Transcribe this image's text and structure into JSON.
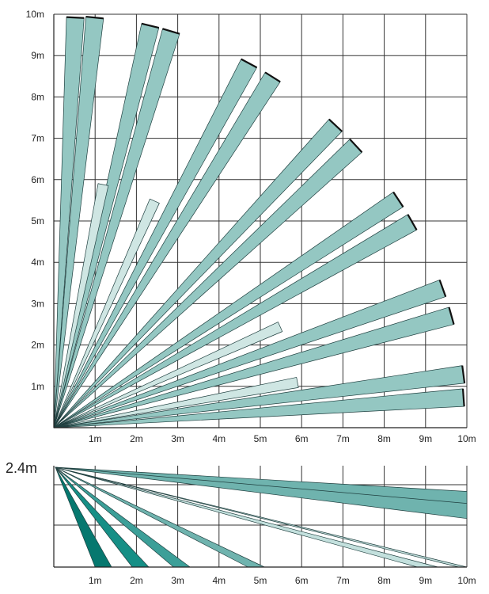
{
  "top_view": {
    "y_tick_labels": [
      "1m",
      "2m",
      "3m",
      "4m",
      "5m",
      "6m",
      "7m",
      "8m",
      "9m",
      "10m"
    ],
    "x_tick_labels": [
      "1m",
      "2m",
      "3m",
      "4m",
      "5m",
      "6m",
      "7m",
      "8m",
      "9m",
      "10m"
    ],
    "x_range_m": [
      0,
      10
    ],
    "y_range_m": [
      0,
      10
    ],
    "grid": true,
    "colors": {
      "long_beam": "#94c7c2",
      "short_beam": "#cfe6e3"
    },
    "long_beams": [
      {
        "angle_deg": 87.0,
        "range_m": 10.0
      },
      {
        "angle_deg": 84.3,
        "range_m": 10.0
      },
      {
        "angle_deg": 76.5,
        "range_m": 10.0
      },
      {
        "angle_deg": 73.5,
        "range_m": 10.0
      },
      {
        "angle_deg": 61.8,
        "range_m": 10.0
      },
      {
        "angle_deg": 58.0,
        "range_m": 10.0
      },
      {
        "angle_deg": 47.0,
        "range_m": 10.0
      },
      {
        "angle_deg": 43.0,
        "range_m": 10.0
      },
      {
        "angle_deg": 33.5,
        "range_m": 10.0
      },
      {
        "angle_deg": 29.8,
        "range_m": 10.0
      },
      {
        "angle_deg": 19.7,
        "range_m": 10.0
      },
      {
        "angle_deg": 15.7,
        "range_m": 10.0
      },
      {
        "angle_deg": 7.4,
        "range_m": 10.0
      },
      {
        "angle_deg": 4.2,
        "range_m": 10.0
      }
    ],
    "short_beams": [
      {
        "angle_deg": 78.5,
        "range_m": 6.0
      },
      {
        "angle_deg": 66.0,
        "range_m": 6.0
      },
      {
        "angle_deg": 24.0,
        "range_m": 6.0
      },
      {
        "angle_deg": 10.5,
        "range_m": 6.0
      }
    ]
  },
  "side_view": {
    "mount_height_label": "2.4m",
    "x_tick_labels": [
      "1m",
      "2m",
      "3m",
      "4m",
      "5m",
      "6m",
      "7m",
      "8m",
      "9m",
      "10m"
    ],
    "x_range_m": [
      0,
      10
    ],
    "y_range_m": [
      0,
      2.4
    ],
    "grid": true,
    "colors": [
      "#06786f",
      "#168f86",
      "#3c9f98",
      "#6fb3ae",
      "#a9d2ce",
      "#c3e0dd",
      "#a9d2ce"
    ],
    "beams": [
      {
        "near_m": 1.0,
        "far_m": 1.4
      },
      {
        "near_m": 1.9,
        "far_m": 2.3
      },
      {
        "near_m": 2.9,
        "far_m": 3.3
      },
      {
        "near_m": 4.7,
        "far_m": 5.1
      },
      {
        "near_m": 8.8,
        "far_m": 9.3
      },
      {
        "near_m": 9.8,
        "far_m": 10.0
      }
    ],
    "upper_beam": {
      "top_end_height_m": 1.79,
      "bottom_end_height_m": 1.15
    }
  }
}
